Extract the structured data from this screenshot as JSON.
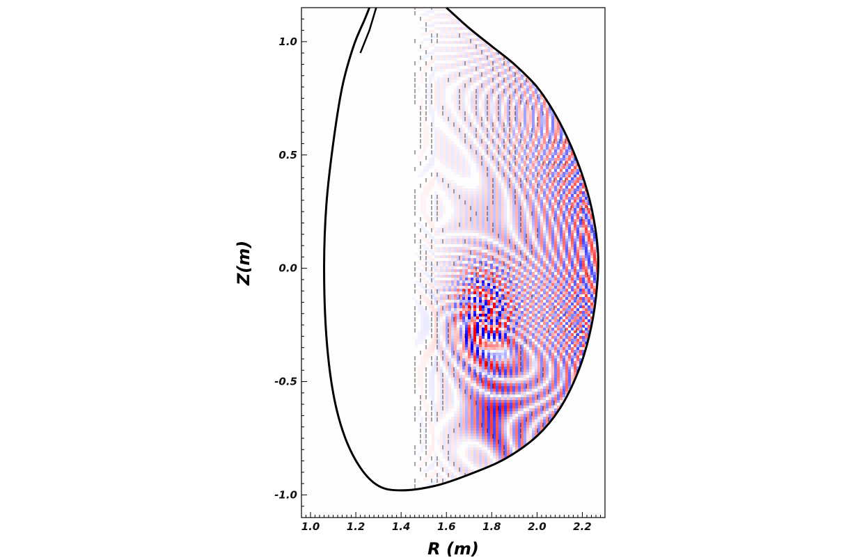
{
  "chart_data": {
    "type": "heatmap",
    "title": "",
    "xlabel": "R (m)",
    "ylabel": "Z(m)",
    "xlim": [
      0.96,
      2.3
    ],
    "ylim": [
      -1.1,
      1.15
    ],
    "x_ticks": [
      {
        "value": 1.0,
        "label": "1.0"
      },
      {
        "value": 1.2,
        "label": "1.2"
      },
      {
        "value": 1.4,
        "label": "1.4"
      },
      {
        "value": 1.6,
        "label": "1.6"
      },
      {
        "value": 1.8,
        "label": "1.8"
      },
      {
        "value": 2.0,
        "label": "2.0"
      },
      {
        "value": 2.2,
        "label": "2.2"
      }
    ],
    "y_ticks": [
      {
        "value": 1.0,
        "label": "1.0"
      },
      {
        "value": 0.5,
        "label": "0.5"
      },
      {
        "value": 0.0,
        "label": "0.0"
      },
      {
        "value": -0.5,
        "label": "-0.5"
      },
      {
        "value": -1.0,
        "label": "-1.0"
      }
    ],
    "colormap": {
      "negative": "#0000ff",
      "zero": "#ffffff",
      "positive": "#ff0000"
    },
    "boundary_color": "#000000",
    "boundary": [
      [
        1.6,
        1.15
      ],
      [
        1.7,
        1.06
      ],
      [
        1.8,
        0.98
      ],
      [
        1.9,
        0.9
      ],
      [
        2.0,
        0.8
      ],
      [
        2.08,
        0.68
      ],
      [
        2.15,
        0.54
      ],
      [
        2.21,
        0.38
      ],
      [
        2.25,
        0.22
      ],
      [
        2.27,
        0.05
      ],
      [
        2.26,
        -0.13
      ],
      [
        2.23,
        -0.3
      ],
      [
        2.18,
        -0.46
      ],
      [
        2.1,
        -0.62
      ],
      [
        2.0,
        -0.74
      ],
      [
        1.86,
        -0.84
      ],
      [
        1.7,
        -0.91
      ],
      [
        1.55,
        -0.96
      ],
      [
        1.4,
        -0.98
      ],
      [
        1.3,
        -0.96
      ],
      [
        1.22,
        -0.88
      ],
      [
        1.15,
        -0.74
      ],
      [
        1.1,
        -0.55
      ],
      [
        1.07,
        -0.3
      ],
      [
        1.06,
        0.0
      ],
      [
        1.07,
        0.28
      ],
      [
        1.1,
        0.55
      ],
      [
        1.14,
        0.8
      ],
      [
        1.19,
        0.98
      ],
      [
        1.24,
        1.1
      ],
      [
        1.26,
        1.15
      ]
    ],
    "separatrix_leg": [
      [
        1.29,
        1.15
      ],
      [
        1.26,
        1.05
      ],
      [
        1.22,
        0.95
      ]
    ],
    "wave_field": {
      "source_center": [
        1.76,
        -0.22
      ],
      "hotspot_strength": 1.0,
      "edge_band_strength": 0.7,
      "inner_extent_R": 1.3
    }
  }
}
